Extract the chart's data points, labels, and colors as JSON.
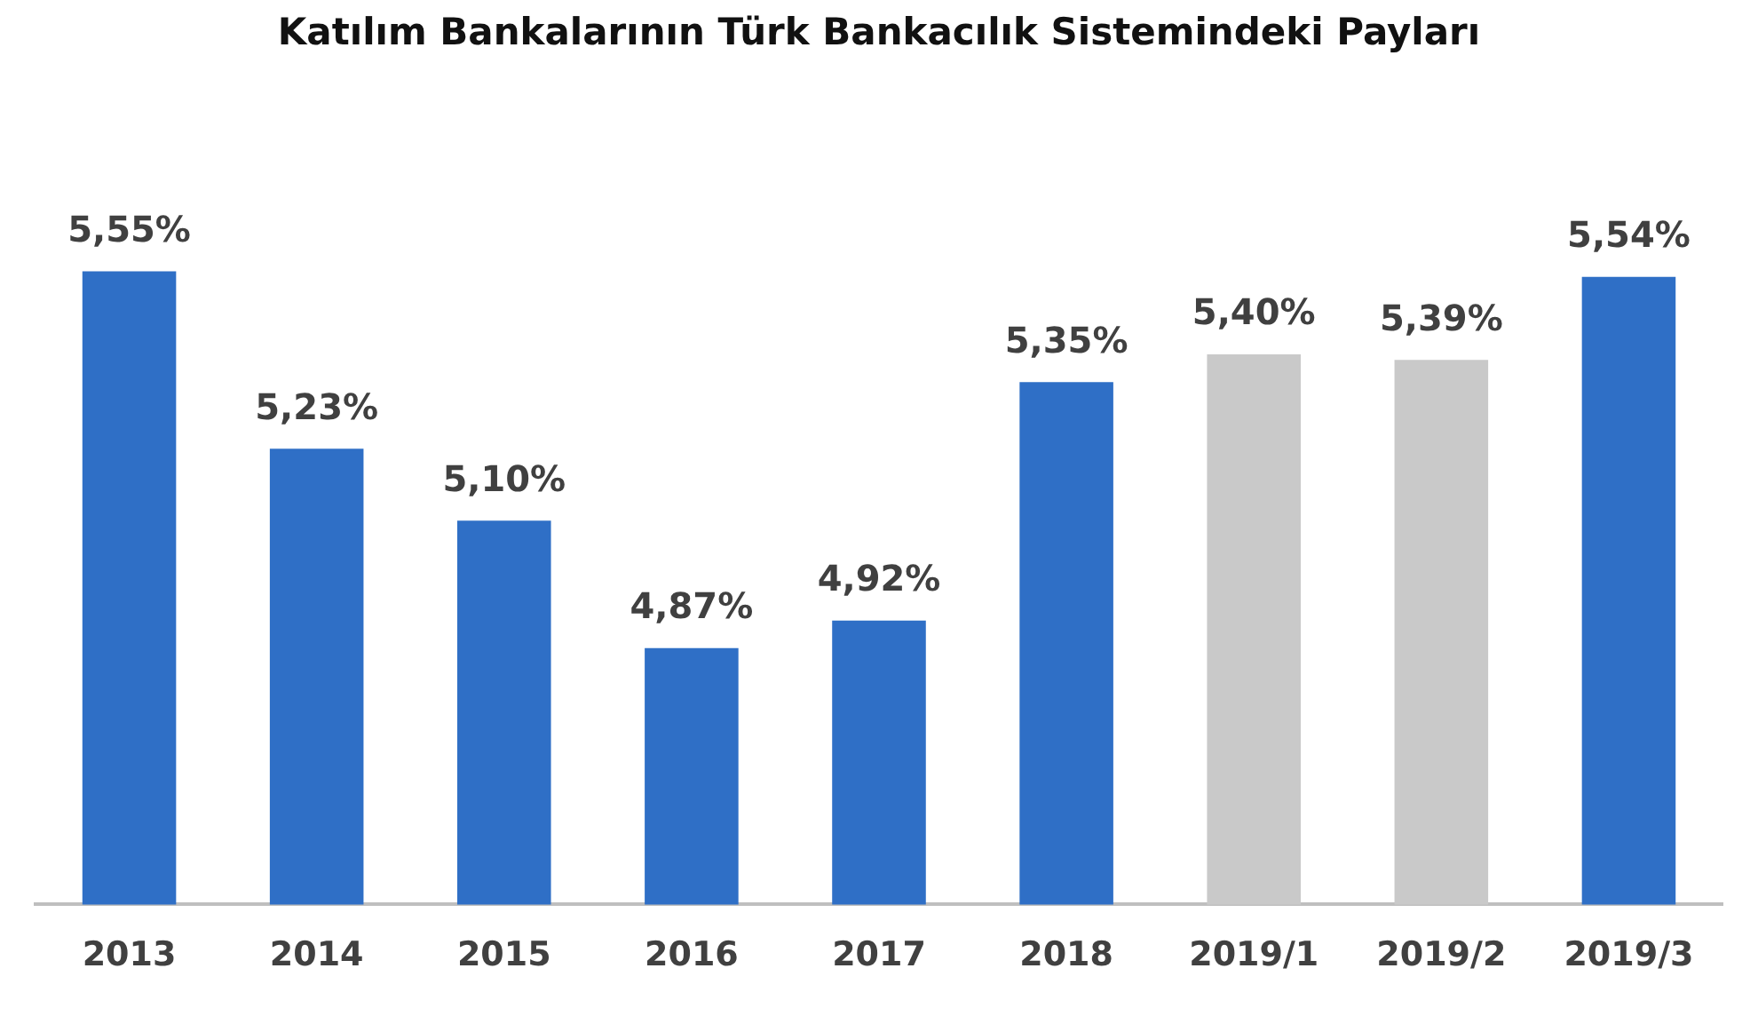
{
  "chart_data": {
    "type": "bar",
    "title": "Katılım Bankalarının Türk Bankacılık Sistemindeki Payları",
    "categories": [
      "2013",
      "2014",
      "2015",
      "2016",
      "2017",
      "2018",
      "2019/1",
      "2019/2",
      "2019/3"
    ],
    "values": [
      5.55,
      5.23,
      5.1,
      4.87,
      4.92,
      5.35,
      5.4,
      5.39,
      5.54
    ],
    "value_labels": [
      "5,55%",
      "5,23%",
      "5,10%",
      "4,87%",
      "4,92%",
      "5,35%",
      "5,40%",
      "5,39%",
      "5,54%"
    ],
    "colors": [
      "#2f6fc6",
      "#2f6fc6",
      "#2f6fc6",
      "#2f6fc6",
      "#2f6fc6",
      "#2f6fc6",
      "#c9c9c9",
      "#c9c9c9",
      "#2f6fc6"
    ],
    "grid": false,
    "legend": false,
    "tick_labels": "x"
  }
}
